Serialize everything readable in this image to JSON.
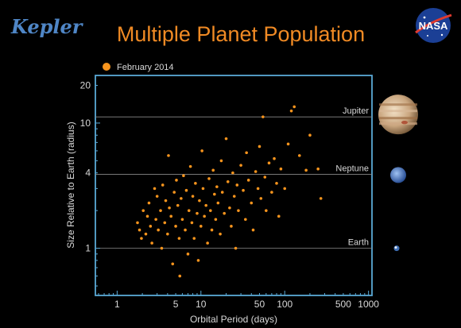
{
  "header": {
    "logo_left": "Kepler",
    "logo_right": "NASA"
  },
  "colors": {
    "background": "#000000",
    "title": "#f08a24",
    "point": "#f7941d",
    "frame": "#5aa9d6",
    "text": "#d8d8d8"
  },
  "chart_data": {
    "type": "scatter",
    "title": "Multiple Planet Population",
    "xlabel": "Orbital Period (days)",
    "ylabel": "Size Relative to Earth (radius)",
    "xscale": "log",
    "yscale": "log",
    "xlim": [
      0.55,
      1100
    ],
    "ylim": [
      0.42,
      24
    ],
    "xticks": [
      {
        "value": 1,
        "label": "1"
      },
      {
        "value": 5,
        "label": "5"
      },
      {
        "value": 10,
        "label": "10"
      },
      {
        "value": 50,
        "label": "50"
      },
      {
        "value": 100,
        "label": "100"
      },
      {
        "value": 500,
        "label": "500"
      },
      {
        "value": 1000,
        "label": "1000"
      }
    ],
    "yticks": [
      {
        "value": 1,
        "label": "1"
      },
      {
        "value": 4,
        "label": "4"
      },
      {
        "value": 10,
        "label": "10"
      },
      {
        "value": 20,
        "label": "20"
      }
    ],
    "reference_lines": [
      {
        "label": "Jupiter",
        "value": 11.2,
        "planet_icon": "jupiter-icon"
      },
      {
        "label": "Neptune",
        "value": 3.9,
        "planet_icon": "neptune-icon"
      },
      {
        "label": "Earth",
        "value": 1.0,
        "planet_icon": "earth-icon"
      }
    ],
    "legend": {
      "entries": [
        "February 2014"
      ],
      "placement": "top-left"
    },
    "series": [
      {
        "name": "February 2014",
        "points": [
          [
            1.75,
            1.6
          ],
          [
            1.85,
            1.4
          ],
          [
            1.95,
            1.2
          ],
          [
            2.05,
            2.0
          ],
          [
            2.2,
            1.3
          ],
          [
            2.3,
            1.8
          ],
          [
            2.4,
            2.3
          ],
          [
            2.5,
            1.5
          ],
          [
            2.6,
            1.1
          ],
          [
            2.8,
            3.0
          ],
          [
            2.9,
            1.7
          ],
          [
            3.0,
            2.6
          ],
          [
            3.1,
            1.4
          ],
          [
            3.3,
            2.0
          ],
          [
            3.4,
            1.0
          ],
          [
            3.5,
            3.2
          ],
          [
            3.7,
            1.6
          ],
          [
            3.8,
            2.4
          ],
          [
            4.0,
            1.3
          ],
          [
            4.1,
            5.5
          ],
          [
            4.2,
            2.1
          ],
          [
            4.4,
            1.8
          ],
          [
            4.6,
            0.75
          ],
          [
            4.8,
            2.8
          ],
          [
            5.0,
            1.5
          ],
          [
            5.1,
            3.5
          ],
          [
            5.3,
            2.2
          ],
          [
            5.5,
            1.2
          ],
          [
            5.6,
            0.6
          ],
          [
            5.8,
            2.5
          ],
          [
            6.0,
            1.7
          ],
          [
            6.2,
            3.8
          ],
          [
            6.5,
            1.4
          ],
          [
            6.7,
            2.9
          ],
          [
            7.0,
            0.9
          ],
          [
            7.2,
            2.0
          ],
          [
            7.5,
            4.5
          ],
          [
            7.8,
            1.6
          ],
          [
            8.0,
            2.6
          ],
          [
            8.3,
            1.2
          ],
          [
            8.6,
            3.3
          ],
          [
            9.0,
            1.9
          ],
          [
            9.3,
            0.8
          ],
          [
            9.6,
            2.4
          ],
          [
            10.0,
            1.5
          ],
          [
            10.3,
            6.0
          ],
          [
            10.6,
            3.0
          ],
          [
            11.0,
            1.8
          ],
          [
            11.5,
            2.2
          ],
          [
            12.0,
            1.1
          ],
          [
            12.5,
            3.6
          ],
          [
            13.0,
            2.0
          ],
          [
            13.5,
            1.4
          ],
          [
            14.0,
            4.2
          ],
          [
            14.5,
            2.7
          ],
          [
            15.0,
            1.7
          ],
          [
            15.5,
            3.1
          ],
          [
            16.0,
            2.3
          ],
          [
            17.0,
            1.3
          ],
          [
            17.5,
            5.0
          ],
          [
            18.0,
            2.8
          ],
          [
            19.0,
            1.9
          ],
          [
            20.0,
            7.5
          ],
          [
            21.0,
            3.4
          ],
          [
            22.0,
            2.1
          ],
          [
            23.0,
            1.5
          ],
          [
            24.0,
            4.0
          ],
          [
            25.0,
            2.6
          ],
          [
            26.0,
            1.0
          ],
          [
            27.0,
            3.2
          ],
          [
            28.0,
            2.0
          ],
          [
            30.0,
            4.6
          ],
          [
            32.0,
            2.9
          ],
          [
            34.0,
            1.7
          ],
          [
            35.0,
            5.8
          ],
          [
            37.0,
            3.5
          ],
          [
            40.0,
            2.3
          ],
          [
            42.0,
            1.4
          ],
          [
            45.0,
            4.1
          ],
          [
            48.0,
            3.0
          ],
          [
            50.0,
            6.5
          ],
          [
            52.0,
            2.5
          ],
          [
            55.0,
            11.2
          ],
          [
            58.0,
            3.7
          ],
          [
            60.0,
            2.0
          ],
          [
            65.0,
            4.8
          ],
          [
            70.0,
            2.8
          ],
          [
            75.0,
            5.2
          ],
          [
            80.0,
            3.3
          ],
          [
            85.0,
            1.8
          ],
          [
            90.0,
            4.3
          ],
          [
            100.0,
            3.0
          ],
          [
            110.0,
            6.8
          ],
          [
            120.0,
            12.5
          ],
          [
            130.0,
            13.5
          ],
          [
            150.0,
            5.5
          ],
          [
            180.0,
            4.2
          ],
          [
            200.0,
            8.0
          ],
          [
            250.0,
            4.3
          ],
          [
            270.0,
            2.5
          ]
        ]
      }
    ]
  }
}
